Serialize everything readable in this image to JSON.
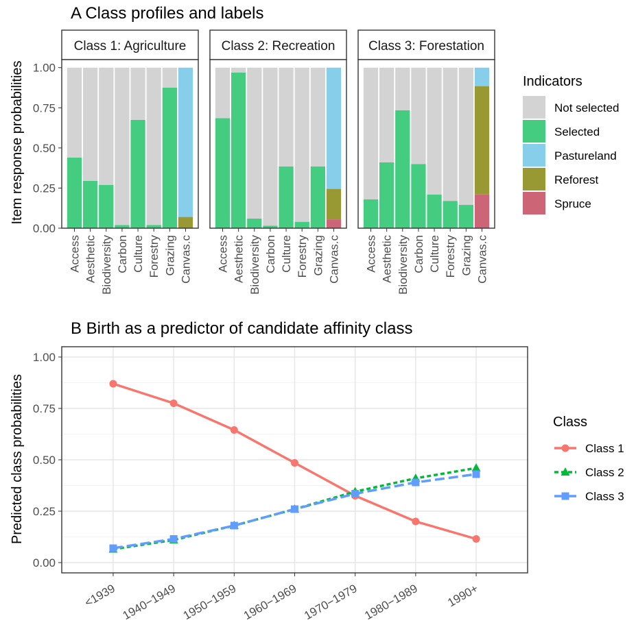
{
  "chart_data": [
    {
      "type": "bar",
      "title": "A Class profiles and labels",
      "ylabel": "Item response probabilities",
      "ylim": [
        0,
        1.05
      ],
      "yticks": [
        "0.00",
        "0.25",
        "0.50",
        "0.75",
        "1.00"
      ],
      "categories": [
        "Access",
        "Aesthetic",
        "Biodiversity",
        "Carbon",
        "Culture",
        "Forestry",
        "Grazing",
        "Canvas.c"
      ],
      "legend": {
        "title": "Indicators",
        "position": "right",
        "entries": [
          {
            "name": "Not selected",
            "color": "#d3d3d3"
          },
          {
            "name": "Selected",
            "color": "#44cc80"
          },
          {
            "name": "Pastureland",
            "color": "#87ceeb"
          },
          {
            "name": "Reforest",
            "color": "#999933"
          },
          {
            "name": "Spruce",
            "color": "#cc6677"
          }
        ]
      },
      "panels": [
        {
          "label": "Class 1: Agriculture",
          "stacks": [
            [
              {
                "name": "Selected",
                "value": 0.44
              },
              {
                "name": "Not selected",
                "value": 0.56
              }
            ],
            [
              {
                "name": "Selected",
                "value": 0.295
              },
              {
                "name": "Not selected",
                "value": 0.705
              }
            ],
            [
              {
                "name": "Selected",
                "value": 0.27
              },
              {
                "name": "Not selected",
                "value": 0.73
              }
            ],
            [
              {
                "name": "Selected",
                "value": 0.02
              },
              {
                "name": "Not selected",
                "value": 0.98
              }
            ],
            [
              {
                "name": "Selected",
                "value": 0.675
              },
              {
                "name": "Not selected",
                "value": 0.325
              }
            ],
            [
              {
                "name": "Selected",
                "value": 0.02
              },
              {
                "name": "Not selected",
                "value": 0.98
              }
            ],
            [
              {
                "name": "Selected",
                "value": 0.875
              },
              {
                "name": "Not selected",
                "value": 0.125
              }
            ],
            [
              {
                "name": "Reforest",
                "value": 0.07
              },
              {
                "name": "Pastureland",
                "value": 0.93
              }
            ]
          ]
        },
        {
          "label": "Class 2: Recreation",
          "stacks": [
            [
              {
                "name": "Selected",
                "value": 0.685
              },
              {
                "name": "Not selected",
                "value": 0.315
              }
            ],
            [
              {
                "name": "Selected",
                "value": 0.97
              },
              {
                "name": "Not selected",
                "value": 0.03
              }
            ],
            [
              {
                "name": "Selected",
                "value": 0.06
              },
              {
                "name": "Not selected",
                "value": 0.94
              }
            ],
            [
              {
                "name": "Selected",
                "value": 0.015
              },
              {
                "name": "Not selected",
                "value": 0.985
              }
            ],
            [
              {
                "name": "Selected",
                "value": 0.385
              },
              {
                "name": "Not selected",
                "value": 0.615
              }
            ],
            [
              {
                "name": "Selected",
                "value": 0.04
              },
              {
                "name": "Not selected",
                "value": 0.96
              }
            ],
            [
              {
                "name": "Selected",
                "value": 0.385
              },
              {
                "name": "Not selected",
                "value": 0.615
              }
            ],
            [
              {
                "name": "Spruce",
                "value": 0.055
              },
              {
                "name": "Reforest",
                "value": 0.19
              },
              {
                "name": "Pastureland",
                "value": 0.755
              }
            ]
          ]
        },
        {
          "label": "Class 3: Forestation",
          "stacks": [
            [
              {
                "name": "Selected",
                "value": 0.18
              },
              {
                "name": "Not selected",
                "value": 0.82
              }
            ],
            [
              {
                "name": "Selected",
                "value": 0.41
              },
              {
                "name": "Not selected",
                "value": 0.59
              }
            ],
            [
              {
                "name": "Selected",
                "value": 0.735
              },
              {
                "name": "Not selected",
                "value": 0.265
              }
            ],
            [
              {
                "name": "Selected",
                "value": 0.4
              },
              {
                "name": "Not selected",
                "value": 0.6
              }
            ],
            [
              {
                "name": "Selected",
                "value": 0.21
              },
              {
                "name": "Not selected",
                "value": 0.79
              }
            ],
            [
              {
                "name": "Selected",
                "value": 0.17
              },
              {
                "name": "Not selected",
                "value": 0.83
              }
            ],
            [
              {
                "name": "Selected",
                "value": 0.145
              },
              {
                "name": "Not selected",
                "value": 0.855
              }
            ],
            [
              {
                "name": "Spruce",
                "value": 0.21
              },
              {
                "name": "Reforest",
                "value": 0.675
              },
              {
                "name": "Pastureland",
                "value": 0.115
              }
            ]
          ]
        }
      ]
    },
    {
      "type": "line",
      "title": "B Birth as a predictor of candidate affinity class",
      "ylabel": "Predicted class probabilities",
      "ylim": [
        0,
        1.0
      ],
      "yticks": [
        "0.00",
        "0.25",
        "0.50",
        "0.75",
        "1.00"
      ],
      "categories": [
        "<1939",
        "1940−1949",
        "1950−1959",
        "1960−1969",
        "1970−1979",
        "1980−1989",
        "1990+"
      ],
      "legend": {
        "title": "Class",
        "position": "right"
      },
      "series": [
        {
          "name": "Class 1",
          "color": "#f8766d",
          "marker": "circle",
          "dash": "solid",
          "values": [
            0.87,
            0.775,
            0.645,
            0.485,
            0.325,
            0.2,
            0.115
          ]
        },
        {
          "name": "Class 2",
          "color": "#00ba38",
          "marker": "triangle",
          "dash": "dotted",
          "values": [
            0.065,
            0.11,
            0.18,
            0.26,
            0.345,
            0.41,
            0.46
          ]
        },
        {
          "name": "Class 3",
          "color": "#619cff",
          "marker": "square",
          "dash": "dashed",
          "values": [
            0.07,
            0.115,
            0.18,
            0.26,
            0.335,
            0.39,
            0.43
          ]
        }
      ]
    }
  ]
}
